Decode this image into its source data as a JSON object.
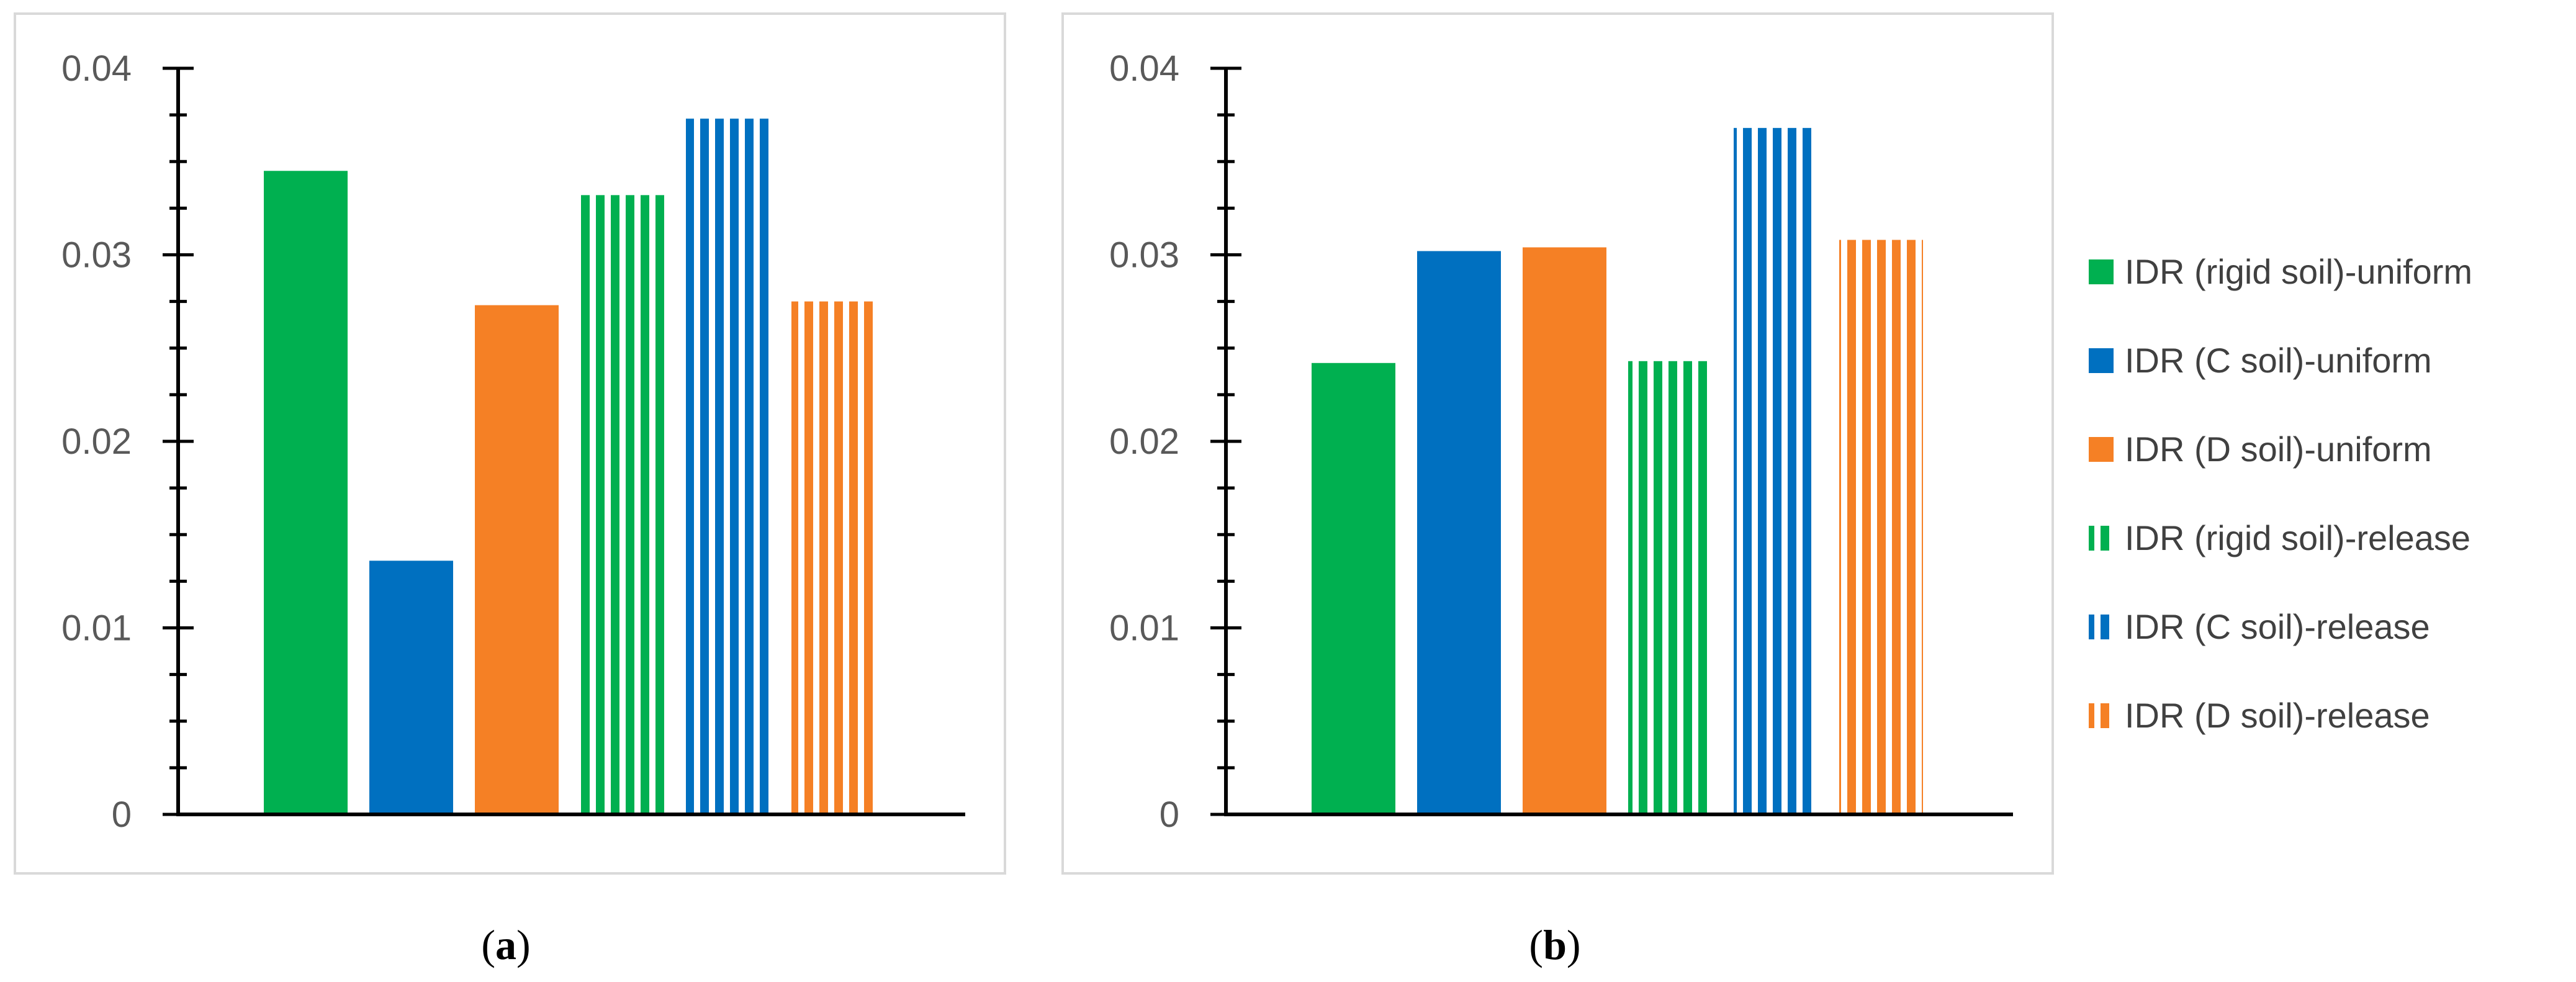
{
  "chart_data": [
    {
      "type": "bar",
      "caption_open": "(",
      "caption_letter": "a",
      "caption_close": ")",
      "categories": [
        "IDR (rigid soil)-uniform",
        "IDR (C soil)-uniform",
        "IDR (D soil)-uniform",
        "IDR (rigid soil)-release",
        "IDR (C soil)-release",
        "IDR (D soil)-release"
      ],
      "values": [
        0.0345,
        0.0136,
        0.0273,
        0.0332,
        0.0373,
        0.0275
      ],
      "ylim": [
        0,
        0.04
      ],
      "major_ticks": [
        0,
        0.01,
        0.02,
        0.03,
        0.04
      ],
      "tick_labels": [
        "0",
        "0.01",
        "0.02",
        "0.03",
        "0.04"
      ],
      "minor_ticks_per_major": 4,
      "title": "",
      "xlabel": "",
      "ylabel": ""
    },
    {
      "type": "bar",
      "caption_open": "(",
      "caption_letter": "b",
      "caption_close": ")",
      "categories": [
        "IDR (rigid soil)-uniform",
        "IDR (C soil)-uniform",
        "IDR (D soil)-uniform",
        "IDR (rigid soil)-release",
        "IDR (C soil)-release",
        "IDR (D soil)-release"
      ],
      "values": [
        0.0242,
        0.0302,
        0.0304,
        0.0243,
        0.0368,
        0.0308
      ],
      "ylim": [
        0,
        0.04
      ],
      "major_ticks": [
        0,
        0.01,
        0.02,
        0.03,
        0.04
      ],
      "tick_labels": [
        "0",
        "0.01",
        "0.02",
        "0.03",
        "0.04"
      ],
      "minor_ticks_per_major": 4,
      "title": "",
      "xlabel": "",
      "ylabel": ""
    }
  ],
  "legend": {
    "placement": "right",
    "items": [
      {
        "label": "IDR (rigid soil)-uniform",
        "color": "#00b050",
        "pattern": "solid"
      },
      {
        "label": "IDR (C soil)-uniform",
        "color": "#0070c0",
        "pattern": "solid"
      },
      {
        "label": "IDR (D soil)-uniform",
        "color": "#f58025",
        "pattern": "solid"
      },
      {
        "label": "IDR (rigid soil)-release",
        "color": "#00b050",
        "pattern": "vertical-stripes"
      },
      {
        "label": "IDR (C soil)-release",
        "color": "#0070c0",
        "pattern": "vertical-stripes"
      },
      {
        "label": "IDR (D soil)-release",
        "color": "#f58025",
        "pattern": "vertical-stripes"
      }
    ]
  }
}
